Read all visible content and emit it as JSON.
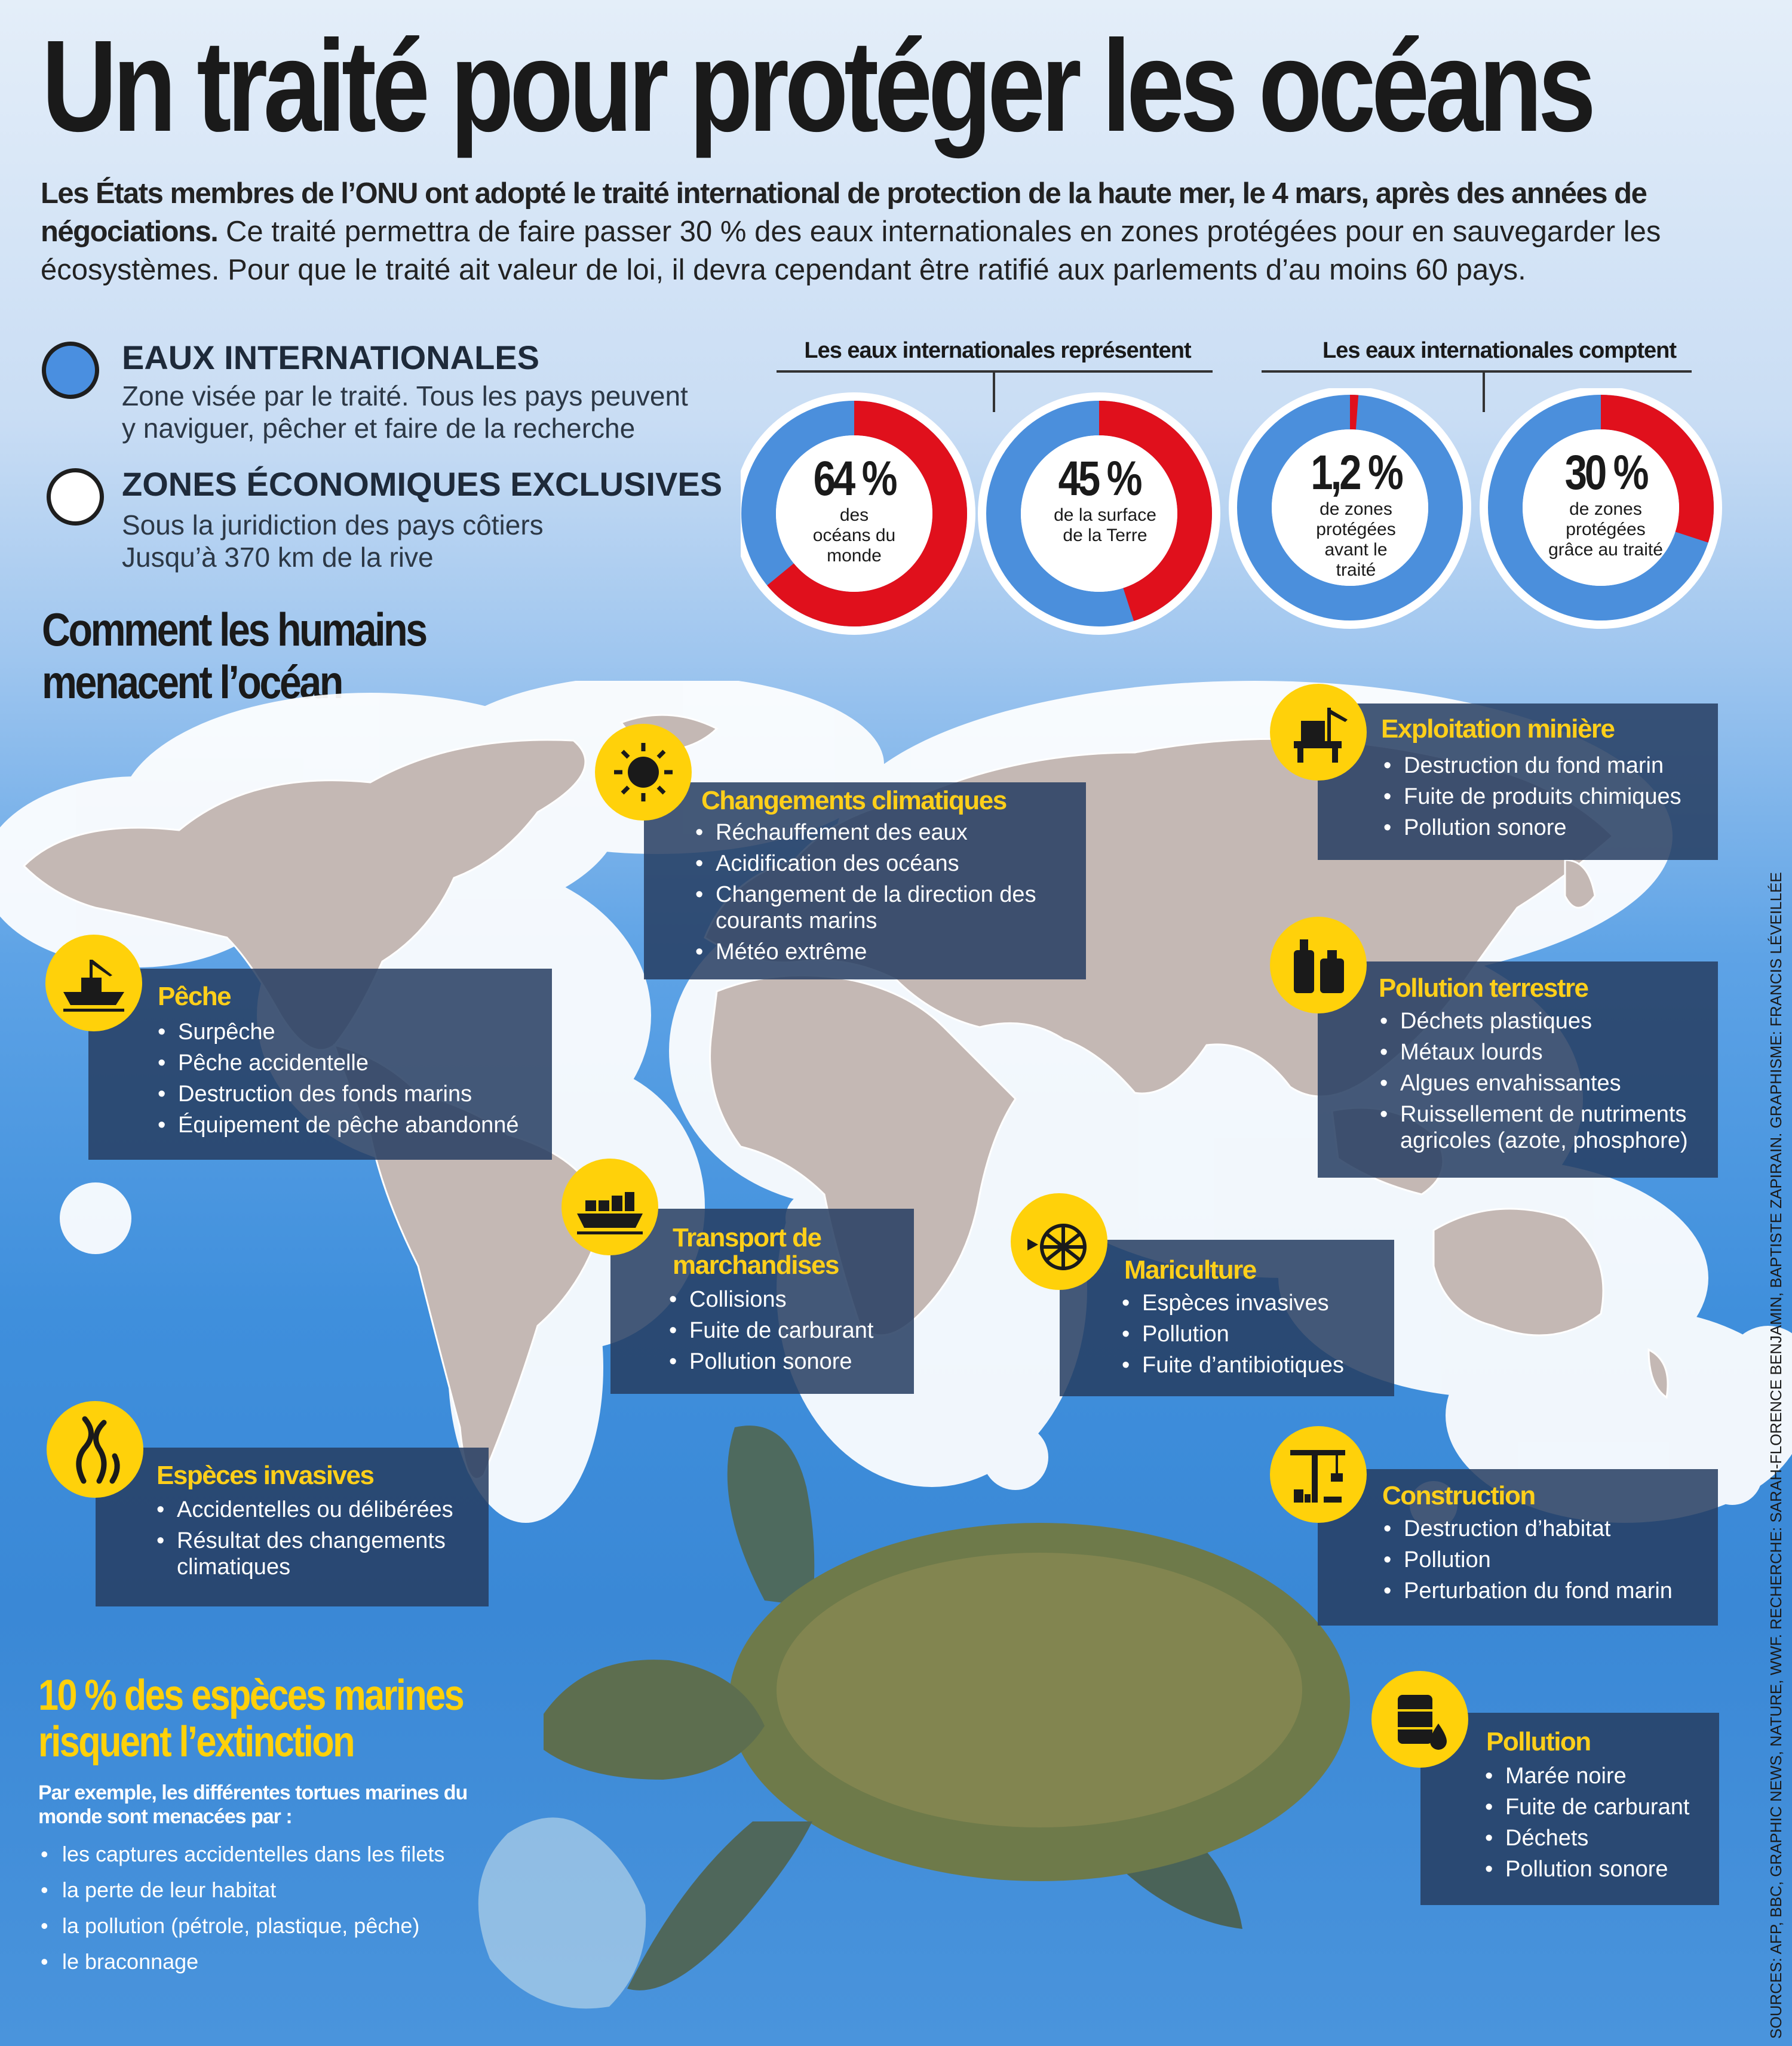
{
  "title": "Un traité pour protéger les océans",
  "intro": {
    "bold": "Les États membres de l’ONU ont adopté le traité international de protection de la haute mer, le 4 mars, après des années de négociations.",
    "text": " Ce traité permettra de faire passer 30 % des eaux internationales en zones protégées pour en sauvegarder les écosystèmes. Pour que le traité ait valeur de loi, il devra cependant être ratifié aux parlements d’au moins 60 pays."
  },
  "legend": [
    {
      "heading": "EAUX INTERNATIONALES",
      "text": "Zone visée par le traité. Tous les pays peuvent y naviguer, pêcher et faire de la recherche",
      "color": "#4a8fe0"
    },
    {
      "heading": "ZONES ÉCONOMIQUES EXCLUSIVES",
      "text": "Sous la juridiction des pays côtiers Jusqu’à 370 km de la rive",
      "color": "#ffffff"
    }
  ],
  "donut_headers": [
    "Les eaux internationales représentent",
    "Les eaux internationales comptent"
  ],
  "chart_data": {
    "type": "pie",
    "colors": {
      "share": "#e0101c",
      "rest": "#4b8fdc"
    },
    "donuts": [
      {
        "value_label": "64 %",
        "label": "des océans du monde",
        "value": 64
      },
      {
        "value_label": "45 %",
        "label": "de la surface de la Terre",
        "value": 45
      },
      {
        "value_label": "1,2 %",
        "label": "de zones protégées avant le traité",
        "value": 1.2
      },
      {
        "value_label": "30 %",
        "label": "de zones protégées grâce au traité",
        "value": 30
      }
    ]
  },
  "section_title": [
    "Comment les humains",
    "menacent l’océan"
  ],
  "threats": {
    "climat": {
      "title": "Changements climatiques",
      "items": [
        "Réchauffement des eaux",
        "Acidification des océans",
        "Changement de la direction des courants marins",
        "Météo extrême"
      ],
      "icon": "sun-icon"
    },
    "miniere": {
      "title": "Exploitation minière",
      "items": [
        "Destruction du fond marin",
        "Fuite de produits chimiques",
        "Pollution sonore"
      ],
      "icon": "oil-rig-icon"
    },
    "peche": {
      "title": "Pêche",
      "items": [
        "Surpêche",
        "Pêche accidentelle",
        "Destruction des fonds marins",
        "Équipement de pêche abandonné"
      ],
      "icon": "fishing-boat-icon"
    },
    "terrestre": {
      "title": "Pollution terrestre",
      "items": [
        "Déchets plastiques",
        "Métaux lourds",
        "Algues envahissantes",
        "Ruissellement de nutriments agricoles (azote, phosphore)"
      ],
      "icon": "bottles-icon"
    },
    "transport": {
      "title": "Transport de marchandises",
      "items": [
        "Collisions",
        "Fuite de carburant",
        "Pollution sonore"
      ],
      "icon": "cargo-ship-icon"
    },
    "mariculture": {
      "title": "Mariculture",
      "items": [
        "Espèces invasives",
        "Pollution",
        "Fuite d’antibiotiques"
      ],
      "icon": "fish-cage-icon"
    },
    "especes": {
      "title": "Espèces invasives",
      "items": [
        "Accidentelles ou délibérées",
        "Résultat des changements climatiques"
      ],
      "icon": "seaweed-icon"
    },
    "construction": {
      "title": "Construction",
      "items": [
        "Destruction d’habitat",
        "Pollution",
        "Perturbation du fond marin"
      ],
      "icon": "crane-icon"
    },
    "pollution": {
      "title": "Pollution",
      "items": [
        "Marée noire",
        "Fuite de carburant",
        "Déchets",
        "Pollution sonore"
      ],
      "icon": "oil-barrel-icon"
    }
  },
  "extinction": {
    "title": [
      "10 % des espèces marines",
      "risquent l’extinction"
    ],
    "subtitle": "Par exemple, les différentes tortues marines du monde sont menacées par :",
    "items": [
      "les captures accidentelles dans les filets",
      "la perte de leur habitat",
      "la pollution (pétrole, plastique, pêche)",
      "le braconnage"
    ]
  },
  "sources": "SOURCES: AFP, BBC, GRAPHIC NEWS, NATURE, WWF.  RECHERCHE: SARAH-FLORENCE BENJAMIN, BAPTISTE ZAPIRAIN. GRAPHISME: FRANCIS LÉVEILLÉE"
}
